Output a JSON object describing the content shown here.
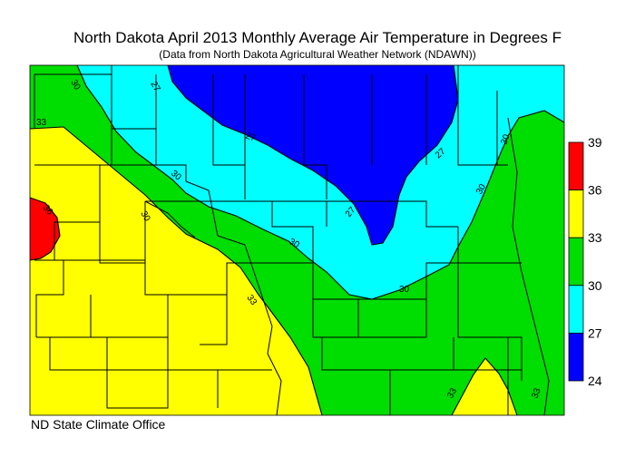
{
  "header": {
    "title": "North Dakota April 2013 Monthly Average Air Temperature in Degrees F",
    "subtitle": "(Data from North Dakota Agricultural Weather Network (NDAWN))"
  },
  "footer": {
    "credit": "ND State Climate Office"
  },
  "legend": {
    "bins": [
      {
        "from": 24,
        "to": 27,
        "color": "#0000ff"
      },
      {
        "from": 27,
        "to": 30,
        "color": "#00ffff"
      },
      {
        "from": 30,
        "to": 33,
        "color": "#00dd00"
      },
      {
        "from": 33,
        "to": 36,
        "color": "#ffff00"
      },
      {
        "from": 36,
        "to": 39,
        "color": "#ff0000"
      }
    ],
    "ticks": [
      "24",
      "27",
      "30",
      "33",
      "36",
      "39"
    ]
  },
  "contours": {
    "labels": [
      "30",
      "27",
      "33",
      "30",
      "30",
      "27",
      "30",
      "33",
      "33",
      "36",
      "27",
      "27",
      "30",
      "30",
      "30",
      "33"
    ]
  }
}
